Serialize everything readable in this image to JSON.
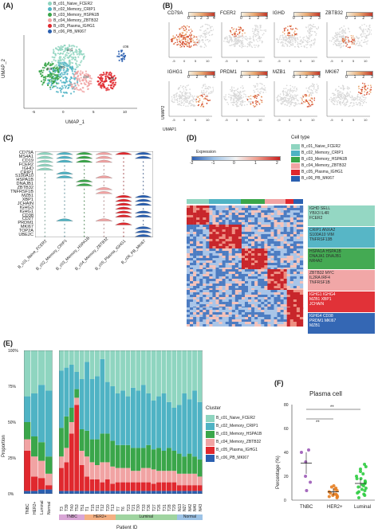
{
  "panelA": {
    "label": "(A)",
    "xlabel": "UMAP_1",
    "ylabel": "UMAP_2",
    "legend": [
      {
        "name": "B_c01_Naive_FCER2",
        "color": "#8fd5c0"
      },
      {
        "name": "B_c02_Memory_CRIP1",
        "color": "#4fb3c4"
      },
      {
        "name": "B_c03_Memory_HSPA1B",
        "color": "#3aa64a"
      },
      {
        "name": "B_c04_Memory_ZBTB32",
        "color": "#f1a3a3"
      },
      {
        "name": "B_c05_Plasma_IGHG1",
        "color": "#e0282e"
      },
      {
        "name": "B_c06_PB_MKI67",
        "color": "#2a5fb0"
      }
    ],
    "cluster_labels": [
      "c01",
      "c02",
      "c03",
      "c04",
      "c05",
      "c06"
    ],
    "xticks": [
      "-5",
      "0",
      "5",
      "10"
    ],
    "yticks": [
      "10",
      "5",
      "0",
      "-5"
    ]
  },
  "panelB": {
    "label": "(B)",
    "xlabel": "UMAP1",
    "ylabel": "UMAP2",
    "genes": [
      {
        "name": "CD79A",
        "ticks": [
          "0",
          "1",
          "2",
          "3",
          "4"
        ]
      },
      {
        "name": "FCER2",
        "ticks": [
          "0",
          "1",
          "2",
          "3"
        ]
      },
      {
        "name": "IGHD",
        "ticks": [
          "0",
          "1",
          "2",
          "3"
        ]
      },
      {
        "name": "ZBTB32",
        "ticks": [
          "0",
          "1",
          "2",
          "3"
        ]
      },
      {
        "name": "IGHG1",
        "ticks": [
          "0",
          "2",
          "4",
          "6"
        ]
      },
      {
        "name": "PRDM1",
        "ticks": [
          "0",
          "1",
          "2",
          "3"
        ]
      },
      {
        "name": "MZB1",
        "ticks": [
          "0",
          "1",
          "2",
          "3",
          "4"
        ]
      },
      {
        "name": "MKI67",
        "ticks": [
          "0",
          "1",
          "2",
          "3"
        ]
      }
    ],
    "axis_ticks": [
      "-5",
      "0",
      "5",
      "10"
    ]
  },
  "panelC": {
    "label": "(C)",
    "genes": [
      "CD79A",
      "MS4A1",
      "CD19",
      "FCER2",
      "IGHD",
      "CRIP1",
      "S100A10",
      "HSPA1B",
      "DNAJB1",
      "ZBTB32",
      "TNFRSF1B",
      "MZB1",
      "XBP1",
      "JCHAIN",
      "IGHG3",
      "IGHG1",
      "CD38",
      "CD27",
      "PRDM1",
      "MKI67",
      "TOP2A",
      "UBE2C"
    ],
    "clusters": [
      "B_c01_Naive_FCER2",
      "B_c02_Memory_CRIP1",
      "B_c03_Memory_HSPA1B",
      "B_c04_Memory_ZBTB32",
      "B_c05_Plasma_IGHG1",
      "B_c06_PB_MKI67"
    ],
    "colors": [
      "#8fd5c0",
      "#4fb3c4",
      "#3aa64a",
      "#f1a3a3",
      "#e0282e",
      "#2a5fb0"
    ]
  },
  "panelD": {
    "label": "(D)",
    "expression_title": "Expression",
    "scale_ticks": [
      "-2",
      "-1",
      "0",
      "1",
      "2"
    ],
    "celltype_title": "Cell type",
    "celltypes": [
      {
        "name": "B_c01_Naive_FCER2",
        "color": "#8fd5c0"
      },
      {
        "name": "B_c02_Memory_CRIP1",
        "color": "#4fb3c4"
      },
      {
        "name": "B_c03_Memory_HSPA1B",
        "color": "#3aa64a"
      },
      {
        "name": "B_c04_Memory_ZBTB32",
        "color": "#f1a3a3"
      },
      {
        "name": "B_c05_Plasma_IGHG1",
        "color": "#e0282e"
      },
      {
        "name": "B_c06_PB_MKI67",
        "color": "#2a5fb0"
      }
    ],
    "gene_blocks": [
      {
        "text": "IGHD SELL\nYBX3 IL4R\nFCER2",
        "color": "#8fd5c0"
      },
      {
        "text": "CRIP1 ANXA2\nS100A10 VIM\nTNFRSF13B",
        "color": "#4fb3c4"
      },
      {
        "text": "HSPA1A HSPA1B\nDNAJA1 DNAJB1\nNR4A2",
        "color": "#3aa64a"
      },
      {
        "text": "ZBTB32 MYC\nIL2RA IRF4\nTNFRSF1B",
        "color": "#f1a3a3"
      },
      {
        "text": "IGHG1 IGHG4\nMZB1 XBP1\nJCHAIN",
        "color": "#e0282e"
      },
      {
        "text": "IGHG4 CD38\nPRDM1 MKI67\nMZB1",
        "color": "#2a5fb0"
      }
    ]
  },
  "panelE": {
    "label": "(E)",
    "ylabel": "Proportion",
    "xlabel": "Patient ID",
    "yticks": [
      "100%",
      "75%",
      "50%",
      "25%",
      "0%"
    ],
    "legend_title": "Cluster",
    "groups_left": [
      "TNBC",
      "HER2+",
      "Luminal",
      "Normal"
    ],
    "group_bar": [
      {
        "name": "TNBC",
        "color": "#d9a6d6"
      },
      {
        "name": "HER2+",
        "color": "#f4b083"
      },
      {
        "name": "Luminal",
        "color": "#9fd4a0"
      },
      {
        "name": "Normal",
        "color": "#9dc3e6"
      }
    ],
    "patients": [
      "T3",
      "T39",
      "T40",
      "T53",
      "T51",
      "T1",
      "T15",
      "T11",
      "T12",
      "T20",
      "T13",
      "T7",
      "T6",
      "T23",
      "T21",
      "T30",
      "T33",
      "T36",
      "T27",
      "T26",
      "T31",
      "T28",
      "T29",
      "N13",
      "N27",
      "N42",
      "N40",
      "N43"
    ],
    "cluster_colors": [
      "#8fd5c0",
      "#4fb3c4",
      "#3aa64a",
      "#f1a3a3",
      "#e0282e",
      "#2a5fb0"
    ],
    "left_props": [
      [
        0.32,
        0.18,
        0.12,
        0.08,
        0.28,
        0.02
      ],
      [
        0.3,
        0.3,
        0.14,
        0.14,
        0.1,
        0.02
      ],
      [
        0.24,
        0.4,
        0.13,
        0.12,
        0.08,
        0.03
      ],
      [
        0.28,
        0.46,
        0.12,
        0.08,
        0.03,
        0.03
      ]
    ],
    "right_props": [
      [
        0.14,
        0.4,
        0.2,
        0.08,
        0.16,
        0.02
      ],
      [
        0.12,
        0.34,
        0.22,
        0.1,
        0.2,
        0.02
      ],
      [
        0.1,
        0.3,
        0.1,
        0.08,
        0.4,
        0.02
      ],
      [
        0.15,
        0.12,
        0.06,
        0.05,
        0.6,
        0.02
      ],
      [
        0.2,
        0.35,
        0.15,
        0.1,
        0.18,
        0.02
      ],
      [
        0.08,
        0.48,
        0.18,
        0.14,
        0.1,
        0.02
      ],
      [
        0.2,
        0.42,
        0.16,
        0.12,
        0.08,
        0.02
      ],
      [
        0.18,
        0.44,
        0.18,
        0.1,
        0.08,
        0.02
      ],
      [
        0.06,
        0.52,
        0.2,
        0.14,
        0.06,
        0.02
      ],
      [
        0.22,
        0.36,
        0.2,
        0.12,
        0.08,
        0.02
      ],
      [
        0.25,
        0.38,
        0.18,
        0.12,
        0.05,
        0.02
      ],
      [
        0.3,
        0.36,
        0.16,
        0.1,
        0.06,
        0.02
      ],
      [
        0.28,
        0.38,
        0.16,
        0.1,
        0.06,
        0.02
      ],
      [
        0.32,
        0.34,
        0.16,
        0.1,
        0.06,
        0.02
      ],
      [
        0.26,
        0.42,
        0.16,
        0.08,
        0.06,
        0.02
      ],
      [
        0.28,
        0.4,
        0.16,
        0.08,
        0.06,
        0.02
      ],
      [
        0.24,
        0.44,
        0.14,
        0.1,
        0.06,
        0.02
      ],
      [
        0.3,
        0.36,
        0.16,
        0.1,
        0.06,
        0.02
      ],
      [
        0.35,
        0.34,
        0.14,
        0.1,
        0.05,
        0.02
      ],
      [
        0.32,
        0.36,
        0.16,
        0.08,
        0.06,
        0.02
      ],
      [
        0.3,
        0.4,
        0.14,
        0.08,
        0.06,
        0.02
      ],
      [
        0.36,
        0.32,
        0.16,
        0.08,
        0.06,
        0.02
      ],
      [
        0.4,
        0.3,
        0.14,
        0.08,
        0.06,
        0.02
      ],
      [
        0.38,
        0.34,
        0.14,
        0.08,
        0.04,
        0.02
      ],
      [
        0.3,
        0.44,
        0.12,
        0.08,
        0.04,
        0.02
      ],
      [
        0.34,
        0.38,
        0.14,
        0.08,
        0.04,
        0.02
      ],
      [
        0.28,
        0.46,
        0.12,
        0.08,
        0.04,
        0.02
      ],
      [
        0.36,
        0.4,
        0.12,
        0.06,
        0.04,
        0.02
      ]
    ]
  },
  "panelF": {
    "label": "(F)",
    "title": "Plasma cell",
    "ylabel": "Percentage (%)",
    "yticks": [
      "80",
      "60",
      "40",
      "20",
      "0"
    ],
    "ylim": [
      0,
      80
    ],
    "groups": [
      {
        "name": "TNBC",
        "color": "#9b59b6",
        "mean": 31,
        "sd": 9,
        "points": [
          8,
          15,
          20,
          32,
          42,
          40
        ]
      },
      {
        "name": "HER2+",
        "color": "#e67e22",
        "mean": 7,
        "sd": 3,
        "points": [
          2,
          3,
          4,
          5,
          6,
          7,
          8,
          9,
          10,
          11,
          12,
          5,
          3,
          4
        ]
      },
      {
        "name": "Luminal",
        "color": "#2ecc40",
        "mean": 14,
        "sd": 4,
        "points": [
          2,
          4,
          6,
          8,
          10,
          11,
          12,
          13,
          15,
          16,
          18,
          20,
          22,
          24,
          26,
          28,
          30,
          5,
          9,
          14,
          7,
          18
        ]
      }
    ],
    "sig": [
      "**",
      "**"
    ]
  }
}
